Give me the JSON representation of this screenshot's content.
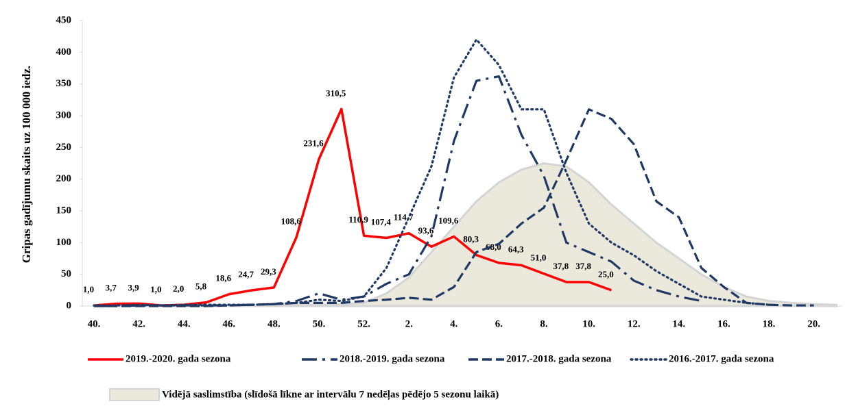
{
  "chart_data": {
    "type": "line",
    "y_label": "Gripas gadījumu skaits uz 100 000 iedz.",
    "categories": [
      "40.",
      null,
      "42.",
      null,
      "44.",
      null,
      "46.",
      null,
      "48.",
      null,
      "50.",
      null,
      "52.",
      null,
      "2.",
      null,
      "4.",
      null,
      "6.",
      null,
      "8.",
      null,
      "10.",
      null,
      "12.",
      null,
      "14.",
      null,
      "16.",
      null,
      "18.",
      null,
      "20.",
      null
    ],
    "ylim": [
      0,
      450
    ],
    "yticks": [
      0,
      50,
      100,
      150,
      200,
      250,
      300,
      350,
      400,
      450
    ],
    "grid": false,
    "area": {
      "name": "Vidējā saslimstība (slīdošā līkne ar intervālu 7 nedēļas pēdējo 5 sezonu laikā)",
      "color": "#ebe8dc",
      "edge": "#d4d4d4",
      "values": [
        1,
        1,
        1,
        1,
        1,
        1,
        1,
        1,
        1,
        2,
        2,
        3,
        5,
        20,
        45,
        85,
        125,
        165,
        195,
        215,
        225,
        220,
        195,
        160,
        130,
        100,
        75,
        50,
        30,
        15,
        8,
        5,
        3,
        2
      ]
    },
    "series": [
      {
        "name": "2019.-2020. gada sezona",
        "color": "#ff0000",
        "dash": "solid",
        "values": [
          1.0,
          3.7,
          3.9,
          1.0,
          2.0,
          5.8,
          18.6,
          24.7,
          29.3,
          108.6,
          231.6,
          310.5,
          110.9,
          107.4,
          114.7,
          93.6,
          109.6,
          80.3,
          68.0,
          64.3,
          51.0,
          37.8,
          37.8,
          25.0,
          null,
          null,
          null,
          null,
          null,
          null,
          null,
          null,
          null,
          null
        ],
        "value_labels": [
          "1,0",
          "3,7",
          "3,9",
          "1,0",
          "2,0",
          "5,8",
          "18,6",
          "24,7",
          "29,3",
          "108,6",
          "231,6",
          "310,5",
          "110,9",
          "107,4",
          "114,7",
          "93,6",
          "109,6",
          "80,3",
          "68,0",
          "64,3",
          "51,0",
          "37,8",
          "37,8",
          "25,0",
          null,
          null,
          null,
          null,
          null,
          null,
          null,
          null,
          null,
          null
        ]
      },
      {
        "name": "2018.-2019. gada sezona",
        "color": "#203864",
        "dash": "dashdot",
        "values": [
          0,
          0,
          1,
          1,
          1,
          1,
          1,
          2,
          3,
          8,
          20,
          10,
          15,
          35,
          50,
          110,
          260,
          355,
          362,
          270,
          205,
          100,
          85,
          70,
          40,
          25,
          15,
          8,
          null,
          null,
          null,
          null,
          null,
          null
        ]
      },
      {
        "name": "2017.-2018. gada sezona",
        "color": "#203864",
        "dash": "dash",
        "values": [
          0,
          0,
          0,
          0,
          0,
          0,
          1,
          2,
          3,
          5,
          5,
          5,
          8,
          10,
          13,
          10,
          30,
          85,
          98,
          130,
          155,
          230,
          310,
          295,
          255,
          165,
          140,
          60,
          30,
          5,
          2,
          1,
          1,
          null
        ]
      },
      {
        "name": "2016.-2017. gada sezona",
        "color": "#203864",
        "dash": "dot",
        "values": [
          1,
          1,
          2,
          1,
          2,
          2,
          2,
          2,
          3,
          5,
          10,
          8,
          15,
          60,
          140,
          220,
          360,
          420,
          380,
          310,
          310,
          210,
          130,
          100,
          80,
          55,
          35,
          15,
          10,
          5,
          2,
          null,
          null,
          null
        ]
      }
    ]
  }
}
